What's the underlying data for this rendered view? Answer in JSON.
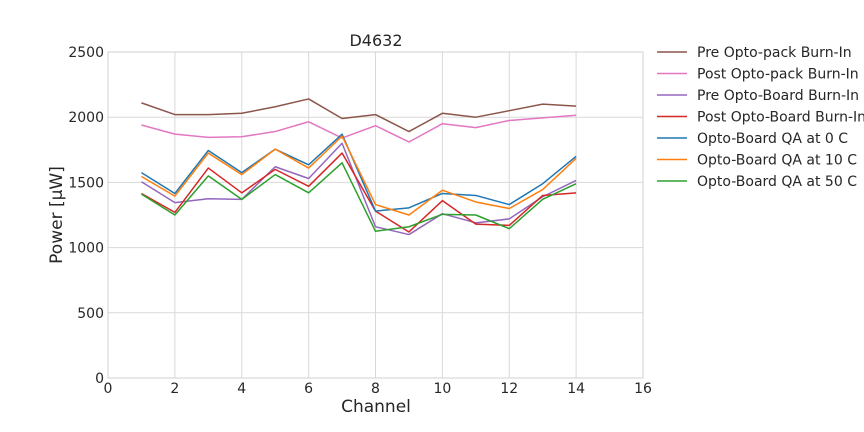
{
  "chart_data": {
    "type": "line",
    "title": "D4632",
    "xlabel": "Channel",
    "ylabel": "Power [μW]",
    "xlim": [
      0,
      16
    ],
    "ylim": [
      0,
      2500
    ],
    "xticks": [
      0,
      2,
      4,
      6,
      8,
      10,
      12,
      14,
      16
    ],
    "yticks": [
      0,
      500,
      1000,
      1500,
      2000,
      2500
    ],
    "grid": true,
    "legend_position": "outside-right-top",
    "x": [
      1,
      2,
      3,
      4,
      5,
      6,
      7,
      8,
      9,
      10,
      11,
      12,
      13,
      14
    ],
    "series": [
      {
        "name": "Pre Opto-pack Burn-In",
        "color": "#8c564b",
        "values": [
          2110,
          2020,
          2020,
          2030,
          2080,
          2140,
          1990,
          2020,
          1890,
          2030,
          2000,
          2050,
          2100,
          2085
        ]
      },
      {
        "name": "Post Opto-pack Burn-In",
        "color": "#e377c2",
        "values": [
          1940,
          1870,
          1845,
          1850,
          1890,
          1965,
          1840,
          1935,
          1810,
          1950,
          1920,
          1975,
          1995,
          2015
        ]
      },
      {
        "name": "Pre Opto-Board Burn-In",
        "color": "#9467bd",
        "values": [
          1505,
          1345,
          1375,
          1370,
          1620,
          1530,
          1800,
          1160,
          1100,
          1260,
          1190,
          1220,
          1390,
          1515
        ]
      },
      {
        "name": "Post Opto-Board Burn-In",
        "color": "#d62728",
        "values": [
          1415,
          1270,
          1610,
          1420,
          1600,
          1470,
          1725,
          1280,
          1120,
          1360,
          1180,
          1170,
          1400,
          1420
        ]
      },
      {
        "name": "Opto-Board QA at 0 C",
        "color": "#1f77b4",
        "values": [
          1575,
          1415,
          1745,
          1575,
          1755,
          1635,
          1870,
          1280,
          1305,
          1415,
          1400,
          1330,
          1490,
          1700
        ]
      },
      {
        "name": "Opto-Board QA at 10 C",
        "color": "#ff7f0e",
        "values": [
          1545,
          1395,
          1725,
          1560,
          1755,
          1610,
          1855,
          1330,
          1250,
          1440,
          1350,
          1300,
          1445,
          1685
        ]
      },
      {
        "name": "Opto-Board QA at 50 C",
        "color": "#2ca02c",
        "values": [
          1410,
          1250,
          1550,
          1370,
          1560,
          1420,
          1650,
          1125,
          1160,
          1255,
          1250,
          1145,
          1370,
          1490
        ]
      }
    ]
  }
}
